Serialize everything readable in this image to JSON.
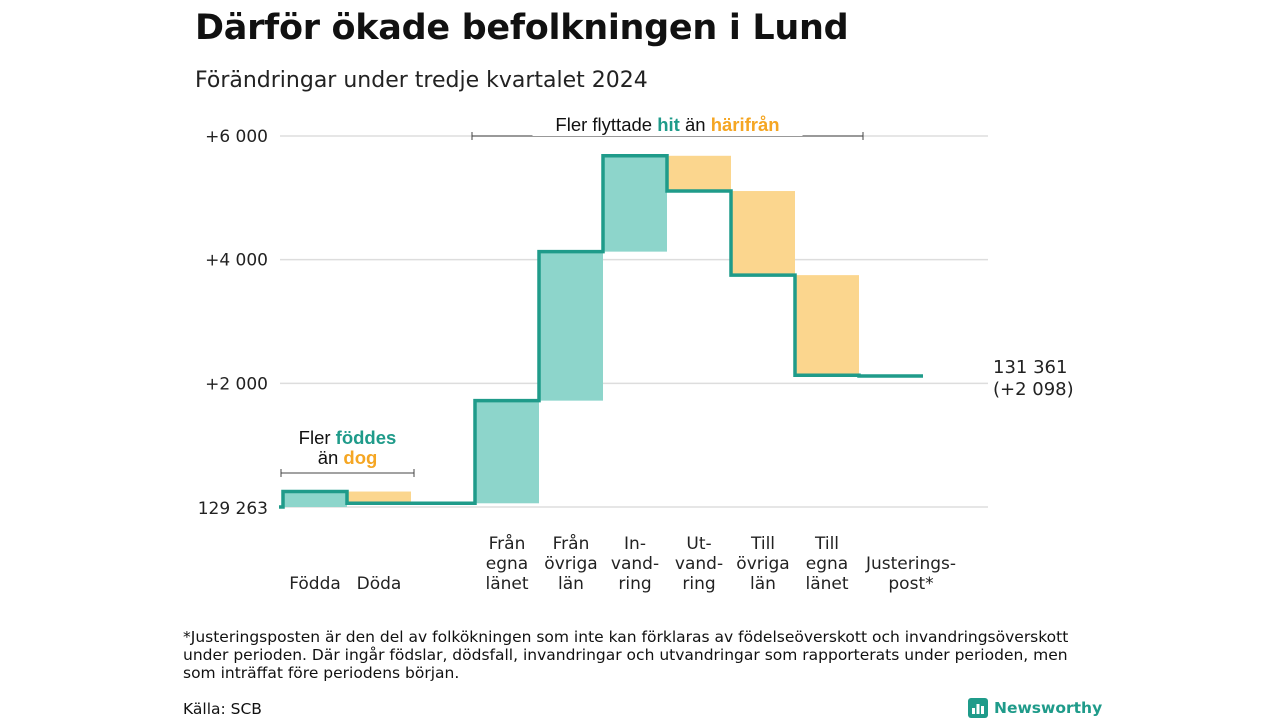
{
  "header": {
    "title": "Därför ökade befolkningen i Lund",
    "subtitle": "Förändringar under tredje kvartalet 2024"
  },
  "colors": {
    "increase": "#8dd5cb",
    "decrease": "#fbd68e",
    "line": "#1f9b8a",
    "highlight_teal": "#1f9b8a",
    "highlight_orange": "#f5a623",
    "grid": "#dddddd"
  },
  "chart_data": {
    "type": "waterfall",
    "title": "Därför ökade befolkningen i Lund",
    "subtitle": "Förändringar under tredje kvartalet 2024",
    "start_value": 129263,
    "start_label": "129 263",
    "end_value": 131361,
    "end_label": "131 361",
    "end_change_label": "(+2 098)",
    "y_axis_unit": "change from start",
    "ylim": [
      0,
      6000
    ],
    "y_ticks": [
      {
        "value": 6000,
        "label": "+6 000"
      },
      {
        "value": 4000,
        "label": "+4 000"
      },
      {
        "value": 2000,
        "label": "+2 000"
      }
    ],
    "grid": true,
    "steps": [
      {
        "label_lines": [
          "Födda"
        ],
        "delta": 250,
        "kind": "increase"
      },
      {
        "label_lines": [
          "Döda"
        ],
        "delta": -190,
        "kind": "decrease"
      },
      {
        "label_lines": [],
        "delta": 0,
        "kind": "none"
      },
      {
        "label_lines": [
          "Från",
          "egna",
          "länet"
        ],
        "delta": 1660,
        "kind": "increase"
      },
      {
        "label_lines": [
          "Från",
          "övriga",
          "län"
        ],
        "delta": 2410,
        "kind": "increase"
      },
      {
        "label_lines": [
          "In-",
          "vand-",
          "ring"
        ],
        "delta": 1550,
        "kind": "increase"
      },
      {
        "label_lines": [
          "Ut-",
          "vand-",
          "ring"
        ],
        "delta": -570,
        "kind": "decrease"
      },
      {
        "label_lines": [
          "Till",
          "övriga",
          "län"
        ],
        "delta": -1360,
        "kind": "decrease"
      },
      {
        "label_lines": [
          "Till",
          "egna",
          "länet"
        ],
        "delta": -1620,
        "kind": "decrease"
      },
      {
        "label_lines": [
          "Justerings-",
          "post*"
        ],
        "delta": -12,
        "kind": "none"
      }
    ],
    "annotations": [
      {
        "id": "births",
        "parts": [
          {
            "lines": [
              [
                {
                  "text": "Fler ",
                  "style": "plain"
                },
                {
                  "text": "föddes",
                  "style": "teal"
                }
              ],
              [
                {
                  "text": "än ",
                  "style": "plain"
                },
                {
                  "text": "dog",
                  "style": "orange"
                }
              ]
            ]
          }
        ],
        "span_steps": [
          0,
          1
        ]
      },
      {
        "id": "migration",
        "parts": [
          {
            "lines": [
              [
                {
                  "text": "Fler flyttade ",
                  "style": "plain"
                },
                {
                  "text": "hit",
                  "style": "teal"
                },
                {
                  "text": " än ",
                  "style": "plain"
                },
                {
                  "text": "härifrån",
                  "style": "orange"
                }
              ]
            ]
          }
        ],
        "span_steps": [
          3,
          8
        ]
      }
    ]
  },
  "footnote": "*Justeringsposten är den del av folkökningen som inte kan förklaras av födelseöverskott och invandringsöverskott under perioden. Där ingår födslar, dödsfall, invandringar och utvandringar som rapporterats under perioden, men som inträffat före periodens början.",
  "source": "Källa: SCB",
  "logo": {
    "name": "Newsworthy",
    "icon": "bar-chart-logo-icon"
  }
}
